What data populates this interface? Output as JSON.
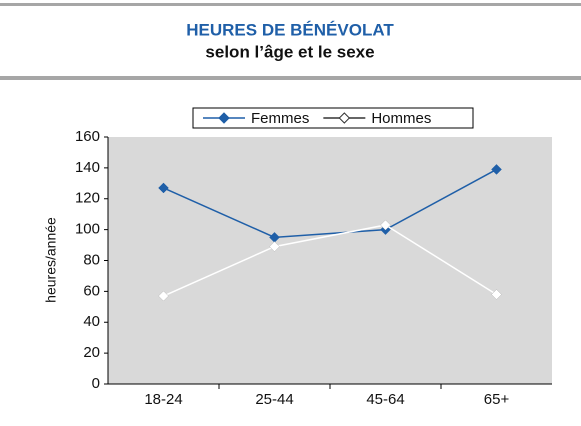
{
  "chart_data": {
    "type": "line",
    "title": "HEURES DE BÉNÉVOLAT",
    "subtitle": "selon l’âge et le sexe",
    "y_label": "heures/année",
    "categories": [
      "18-24",
      "25-44",
      "45-64",
      "65+"
    ],
    "series": [
      {
        "name": "Femmes",
        "color": "#1f5fa8",
        "values": [
          127,
          95,
          100,
          139
        ]
      },
      {
        "name": "Hommes",
        "color": "#ffffff",
        "values": [
          57,
          89,
          103,
          58
        ]
      }
    ],
    "ylim": [
      0,
      160
    ],
    "yticks": [
      0,
      20,
      40,
      60,
      80,
      100,
      120,
      140,
      160
    ],
    "legend": "top"
  }
}
